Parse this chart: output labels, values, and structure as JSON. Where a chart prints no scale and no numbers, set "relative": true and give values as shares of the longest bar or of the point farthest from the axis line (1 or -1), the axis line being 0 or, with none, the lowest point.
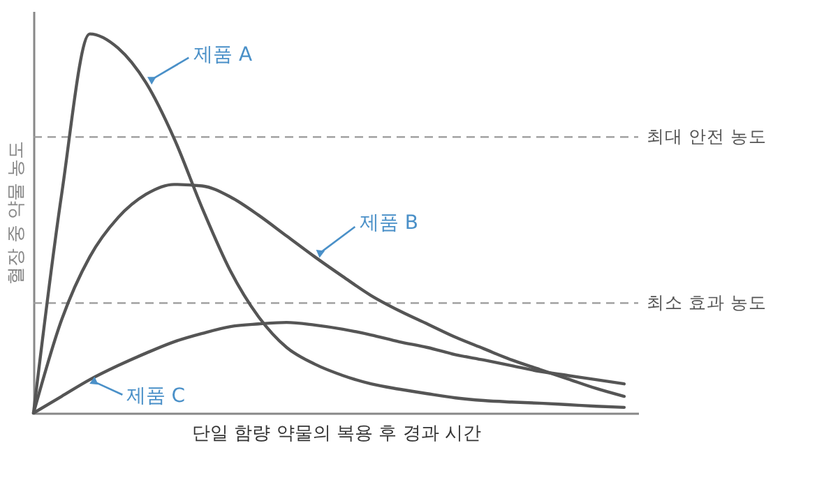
{
  "chart_data": {
    "type": "line",
    "relative": true,
    "xlabel": "단일 함량 약물의 복용 후 경과 시간",
    "ylabel": "혈장 중 약물 농도",
    "categories": [
      null,
      null,
      null,
      null,
      null,
      null,
      null,
      null,
      null,
      null,
      null,
      null,
      null,
      null,
      null,
      null,
      null,
      null,
      null,
      null,
      null,
      null
    ],
    "series": [
      {
        "name": "제품 A",
        "color": "#555555",
        "values": [
          0,
          0.577,
          1,
          0.963,
          0.871,
          0.724,
          0.54,
          0.375,
          0.254,
          0.173,
          0.129,
          0.099,
          0.077,
          0.063,
          0.051,
          0.04,
          0.033,
          0.029,
          0.026,
          0.022,
          0.018,
          0.015
        ]
      },
      {
        "name": "제품 B",
        "color": "#555555",
        "values": [
          0,
          0.246,
          0.412,
          0.515,
          0.577,
          0.603,
          0.599,
          0.57,
          0.522,
          0.467,
          0.412,
          0.36,
          0.31,
          0.27,
          0.235,
          0.2,
          0.17,
          0.14,
          0.115,
          0.09,
          0.065,
          0.044
        ]
      },
      {
        "name": "제품 C",
        "color": "#555555",
        "values": [
          0,
          0.044,
          0.088,
          0.125,
          0.158,
          0.188,
          0.21,
          0.228,
          0.235,
          0.239,
          0.232,
          0.221,
          0.206,
          0.188,
          0.173,
          0.154,
          0.14,
          0.125,
          0.11,
          0.099,
          0.088,
          0.077
        ]
      }
    ],
    "ref_lines": [
      {
        "axis": "y",
        "value": 0.728,
        "label": "최대 안전 농도",
        "color": "#999999",
        "line_style": "dashed"
      },
      {
        "axis": "y",
        "value": 0.29,
        "label": "최소 효과 농도",
        "color": "#999999",
        "line_style": "dashed"
      }
    ],
    "grid": false,
    "legend": false,
    "marker": "none",
    "line_style": "solid"
  }
}
